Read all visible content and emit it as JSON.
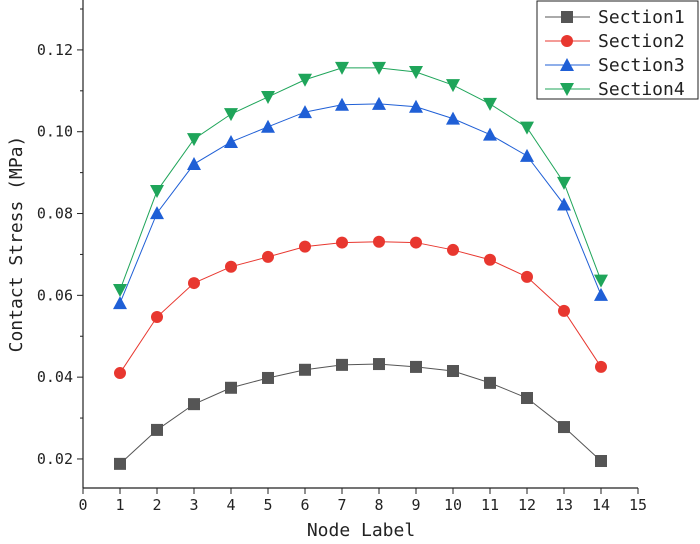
{
  "chart_data": {
    "type": "line",
    "title": "",
    "xlabel": "Node Label",
    "ylabel": "Contact Stress (MPa)",
    "xlim": [
      0,
      15
    ],
    "ylim": [
      0.0129,
      0.1322
    ],
    "xticks": [
      "0",
      "1",
      "2",
      "3",
      "4",
      "5",
      "6",
      "7",
      "8",
      "9",
      "10",
      "11",
      "12",
      "13",
      "14",
      "15"
    ],
    "yticks": [
      "0.02",
      "0.04",
      "0.06",
      "0.08",
      "0.10",
      "0.12"
    ],
    "ytick_values": [
      0.02,
      0.04,
      0.06,
      0.08,
      0.1,
      0.12
    ],
    "legend_position": "top-right",
    "grid": false,
    "x": [
      1,
      2,
      3,
      4,
      5,
      6,
      7,
      8,
      9,
      10,
      11,
      12,
      13,
      14
    ],
    "series": [
      {
        "name": "Section1",
        "color": "#555555",
        "marker": "square",
        "values": [
          0.0188,
          0.0271,
          0.0334,
          0.0374,
          0.0398,
          0.0418,
          0.043,
          0.0432,
          0.0425,
          0.0415,
          0.0386,
          0.0349,
          0.0278,
          0.0195
        ]
      },
      {
        "name": "Section2",
        "color": "#e8372f",
        "marker": "circle",
        "values": [
          0.041,
          0.0547,
          0.063,
          0.067,
          0.0694,
          0.0719,
          0.0729,
          0.0731,
          0.0729,
          0.0711,
          0.0687,
          0.0645,
          0.0562,
          0.0425
        ]
      },
      {
        "name": "Section3",
        "color": "#1f5fd6",
        "marker": "triangle-up",
        "values": [
          0.0581,
          0.0801,
          0.0921,
          0.0975,
          0.1012,
          0.1048,
          0.1066,
          0.1068,
          0.1061,
          0.1032,
          0.0993,
          0.0941,
          0.0822,
          0.0601
        ]
      },
      {
        "name": "Section4",
        "color": "#1fa55a",
        "marker": "triangle-down",
        "values": [
          0.0613,
          0.0855,
          0.0982,
          0.1043,
          0.1085,
          0.1127,
          0.1156,
          0.1156,
          0.1146,
          0.1114,
          0.1068,
          0.101,
          0.0875,
          0.0636
        ]
      }
    ]
  }
}
